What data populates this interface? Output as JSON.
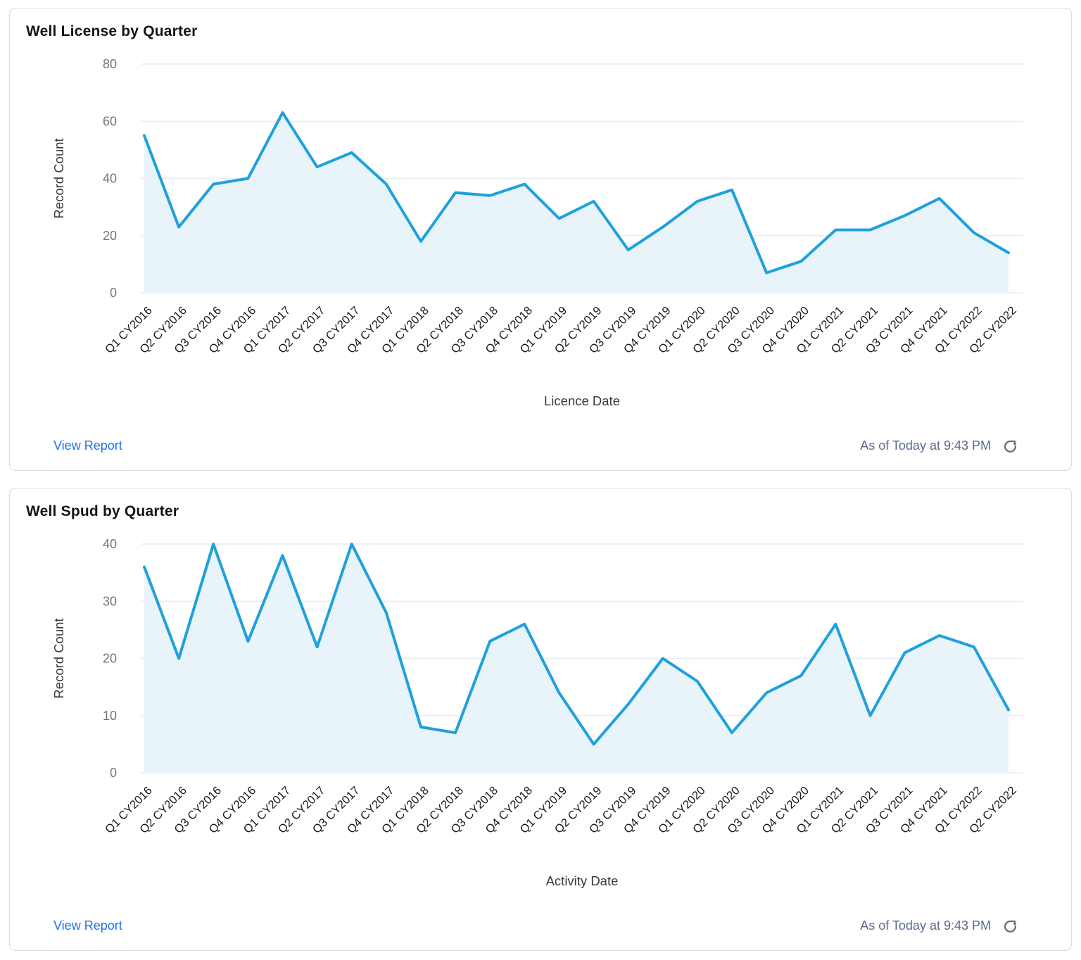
{
  "colors": {
    "line": "#1EA1DC",
    "area_fill": "#E9F3FA",
    "grid": "#E7EDF3",
    "y_tick": "#757575",
    "x_tick": "#1B1B1B",
    "axis_label": "#3A3A3A",
    "title": "#141414",
    "link": "#1A73E8",
    "timestamp": "#5A6A8C",
    "icon": "#6E6E6E",
    "card_border": "#DBDBDB"
  },
  "cards": [
    {
      "title": "Well License by Quarter",
      "view_report_label": "View Report",
      "as_of_text": "As of Today at 9:43 PM",
      "refresh_icon": "refresh-icon"
    },
    {
      "title": "Well Spud by Quarter",
      "view_report_label": "View Report",
      "as_of_text": "As of Today at 9:43 PM",
      "refresh_icon": "refresh-icon"
    }
  ],
  "chart_data": [
    {
      "type": "area",
      "title": "Well License by Quarter",
      "xlabel": "Licence Date",
      "ylabel": "Record Count",
      "ylim": [
        0,
        80
      ],
      "yticks": [
        0,
        20,
        40,
        60,
        80
      ],
      "grid": true,
      "legend": "none",
      "categories": [
        "Q1 CY2016",
        "Q2 CY2016",
        "Q3 CY2016",
        "Q4 CY2016",
        "Q1 CY2017",
        "Q2 CY2017",
        "Q3 CY2017",
        "Q4 CY2017",
        "Q1 CY2018",
        "Q2 CY2018",
        "Q3 CY2018",
        "Q4 CY2018",
        "Q1 CY2019",
        "Q2 CY2019",
        "Q3 CY2019",
        "Q4 CY2019",
        "Q1 CY2020",
        "Q2 CY2020",
        "Q3 CY2020",
        "Q4 CY2020",
        "Q1 CY2021",
        "Q2 CY2021",
        "Q3 CY2021",
        "Q4 CY2021",
        "Q1 CY2022",
        "Q2 CY2022"
      ],
      "values": [
        55,
        23,
        38,
        40,
        63,
        44,
        49,
        38,
        18,
        35,
        34,
        38,
        26,
        32,
        15,
        23,
        32,
        36,
        7,
        11,
        22,
        22,
        27,
        33,
        21,
        14
      ],
      "line_color": "#1EA1DC",
      "fill_color": "#E9F3FA"
    },
    {
      "type": "area",
      "title": "Well Spud by Quarter",
      "xlabel": "Activity Date",
      "ylabel": "Record Count",
      "ylim": [
        0,
        40
      ],
      "yticks": [
        0,
        10,
        20,
        30,
        40
      ],
      "grid": true,
      "legend": "none",
      "categories": [
        "Q1 CY2016",
        "Q2 CY2016",
        "Q3 CY2016",
        "Q4 CY2016",
        "Q1 CY2017",
        "Q2 CY2017",
        "Q3 CY2017",
        "Q4 CY2017",
        "Q1 CY2018",
        "Q2 CY2018",
        "Q3 CY2018",
        "Q4 CY2018",
        "Q1 CY2019",
        "Q2 CY2019",
        "Q3 CY2019",
        "Q4 CY2019",
        "Q1 CY2020",
        "Q2 CY2020",
        "Q3 CY2020",
        "Q4 CY2020",
        "Q1 CY2021",
        "Q2 CY2021",
        "Q3 CY2021",
        "Q4 CY2021",
        "Q1 CY2022",
        "Q2 CY2022"
      ],
      "values": [
        36,
        20,
        40,
        23,
        38,
        22,
        40,
        28,
        8,
        7,
        23,
        26,
        14,
        5,
        12,
        20,
        16,
        7,
        14,
        17,
        26,
        10,
        21,
        24,
        22,
        11
      ],
      "line_color": "#1EA1DC",
      "fill_color": "#E9F3FA"
    }
  ]
}
